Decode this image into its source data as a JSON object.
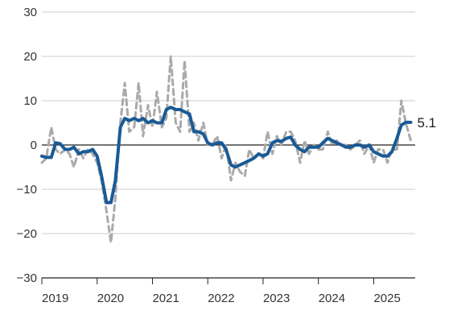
{
  "chart_data": {
    "type": "line",
    "title": "",
    "xlabel": "",
    "ylabel": "",
    "ylim": [
      -30,
      30
    ],
    "yticks": [
      30,
      20,
      10,
      0,
      -10,
      -20,
      -30
    ],
    "xlim": [
      2019.0,
      2025.75
    ],
    "xticks": [
      2019,
      2020,
      2021,
      2022,
      2023,
      2024,
      2025
    ],
    "grid": "horizontal",
    "zero_line": true,
    "end_label": "5.1",
    "series": [
      {
        "color": "#aaaaaa",
        "style": "dashed",
        "points": [
          [
            2019.0,
            -4
          ],
          [
            2019.08,
            -3
          ],
          [
            2019.17,
            4
          ],
          [
            2019.25,
            -1
          ],
          [
            2019.33,
            -2
          ],
          [
            2019.42,
            -1
          ],
          [
            2019.5,
            -2
          ],
          [
            2019.58,
            -5
          ],
          [
            2019.67,
            -1
          ],
          [
            2019.75,
            -3
          ],
          [
            2019.83,
            -1
          ],
          [
            2019.92,
            -2
          ],
          [
            2020.0,
            -4
          ],
          [
            2020.08,
            -8
          ],
          [
            2020.17,
            -15
          ],
          [
            2020.25,
            -22
          ],
          [
            2020.33,
            -12
          ],
          [
            2020.42,
            5
          ],
          [
            2020.5,
            14
          ],
          [
            2020.58,
            3
          ],
          [
            2020.67,
            4
          ],
          [
            2020.75,
            14
          ],
          [
            2020.83,
            2
          ],
          [
            2020.92,
            9
          ],
          [
            2021.0,
            4
          ],
          [
            2021.08,
            12
          ],
          [
            2021.17,
            4
          ],
          [
            2021.25,
            6
          ],
          [
            2021.33,
            20
          ],
          [
            2021.42,
            5
          ],
          [
            2021.5,
            3
          ],
          [
            2021.58,
            19
          ],
          [
            2021.67,
            3
          ],
          [
            2021.75,
            5
          ],
          [
            2021.83,
            1
          ],
          [
            2021.92,
            5
          ],
          [
            2022.0,
            0
          ],
          [
            2022.08,
            0
          ],
          [
            2022.17,
            2
          ],
          [
            2022.25,
            -3
          ],
          [
            2022.33,
            0
          ],
          [
            2022.42,
            -8
          ],
          [
            2022.5,
            -4
          ],
          [
            2022.58,
            -6
          ],
          [
            2022.67,
            -7
          ],
          [
            2022.75,
            -1
          ],
          [
            2022.83,
            -3
          ],
          [
            2022.92,
            -2
          ],
          [
            2023.0,
            -3
          ],
          [
            2023.08,
            3
          ],
          [
            2023.17,
            -2
          ],
          [
            2023.25,
            2
          ],
          [
            2023.33,
            0
          ],
          [
            2023.42,
            3
          ],
          [
            2023.5,
            3
          ],
          [
            2023.58,
            1
          ],
          [
            2023.67,
            -4
          ],
          [
            2023.75,
            1
          ],
          [
            2023.83,
            -2
          ],
          [
            2023.92,
            0
          ],
          [
            2024.0,
            -1
          ],
          [
            2024.08,
            -1
          ],
          [
            2024.17,
            3
          ],
          [
            2024.25,
            0
          ],
          [
            2024.33,
            1
          ],
          [
            2024.42,
            0
          ],
          [
            2024.5,
            0
          ],
          [
            2024.58,
            -1
          ],
          [
            2024.67,
            0
          ],
          [
            2024.75,
            1
          ],
          [
            2024.83,
            -2
          ],
          [
            2024.92,
            0
          ],
          [
            2025.0,
            -4
          ],
          [
            2025.08,
            -1
          ],
          [
            2025.17,
            -1
          ],
          [
            2025.25,
            -4
          ],
          [
            2025.33,
            -1
          ],
          [
            2025.42,
            -1
          ],
          [
            2025.5,
            10
          ],
          [
            2025.58,
            5
          ],
          [
            2025.67,
            1
          ]
        ]
      },
      {
        "color": "#1a5a96",
        "style": "solid",
        "points": [
          [
            2019.0,
            -2.5
          ],
          [
            2019.08,
            -2.8
          ],
          [
            2019.17,
            -2.8
          ],
          [
            2019.25,
            0.5
          ],
          [
            2019.33,
            0.3
          ],
          [
            2019.42,
            -1.0
          ],
          [
            2019.5,
            -1.0
          ],
          [
            2019.58,
            -0.5
          ],
          [
            2019.67,
            -2.0
          ],
          [
            2019.75,
            -1.5
          ],
          [
            2019.83,
            -1.5
          ],
          [
            2019.92,
            -1.0
          ],
          [
            2020.0,
            -2.5
          ],
          [
            2020.08,
            -7.0
          ],
          [
            2020.17,
            -13.0
          ],
          [
            2020.25,
            -13.0
          ],
          [
            2020.33,
            -8.0
          ],
          [
            2020.42,
            4.0
          ],
          [
            2020.5,
            6.0
          ],
          [
            2020.58,
            5.5
          ],
          [
            2020.67,
            6.0
          ],
          [
            2020.75,
            5.5
          ],
          [
            2020.83,
            6.0
          ],
          [
            2020.92,
            5.0
          ],
          [
            2021.0,
            5.5
          ],
          [
            2021.08,
            5.0
          ],
          [
            2021.17,
            5.0
          ],
          [
            2021.25,
            8.0
          ],
          [
            2021.33,
            8.5
          ],
          [
            2021.42,
            8.0
          ],
          [
            2021.5,
            8.0
          ],
          [
            2021.58,
            7.5
          ],
          [
            2021.67,
            7.0
          ],
          [
            2021.75,
            3.0
          ],
          [
            2021.83,
            3.0
          ],
          [
            2021.92,
            2.5
          ],
          [
            2022.0,
            0.5
          ],
          [
            2022.08,
            0.0
          ],
          [
            2022.17,
            0.5
          ],
          [
            2022.25,
            0.5
          ],
          [
            2022.33,
            -1.0
          ],
          [
            2022.42,
            -4.5
          ],
          [
            2022.5,
            -5.0
          ],
          [
            2022.58,
            -4.5
          ],
          [
            2022.67,
            -4.0
          ],
          [
            2022.75,
            -3.5
          ],
          [
            2022.83,
            -3.0
          ],
          [
            2022.92,
            -2.0
          ],
          [
            2023.0,
            -2.5
          ],
          [
            2023.08,
            -2.0
          ],
          [
            2023.17,
            0.5
          ],
          [
            2023.25,
            1.0
          ],
          [
            2023.33,
            0.8
          ],
          [
            2023.42,
            1.5
          ],
          [
            2023.5,
            1.8
          ],
          [
            2023.58,
            0.0
          ],
          [
            2023.67,
            -1.0
          ],
          [
            2023.75,
            -1.5
          ],
          [
            2023.83,
            -0.5
          ],
          [
            2023.92,
            -0.5
          ],
          [
            2024.0,
            -0.5
          ],
          [
            2024.08,
            0.5
          ],
          [
            2024.17,
            1.5
          ],
          [
            2024.25,
            1.0
          ],
          [
            2024.33,
            0.5
          ],
          [
            2024.42,
            0.0
          ],
          [
            2024.5,
            -0.5
          ],
          [
            2024.58,
            -0.5
          ],
          [
            2024.67,
            0.0
          ],
          [
            2024.75,
            0.0
          ],
          [
            2024.83,
            -0.5
          ],
          [
            2024.92,
            0.0
          ],
          [
            2025.0,
            -1.5
          ],
          [
            2025.08,
            -2.0
          ],
          [
            2025.17,
            -2.5
          ],
          [
            2025.25,
            -2.5
          ],
          [
            2025.33,
            -1.5
          ],
          [
            2025.42,
            1.5
          ],
          [
            2025.5,
            4.5
          ],
          [
            2025.58,
            5.1
          ],
          [
            2025.67,
            5.1
          ]
        ]
      }
    ]
  }
}
